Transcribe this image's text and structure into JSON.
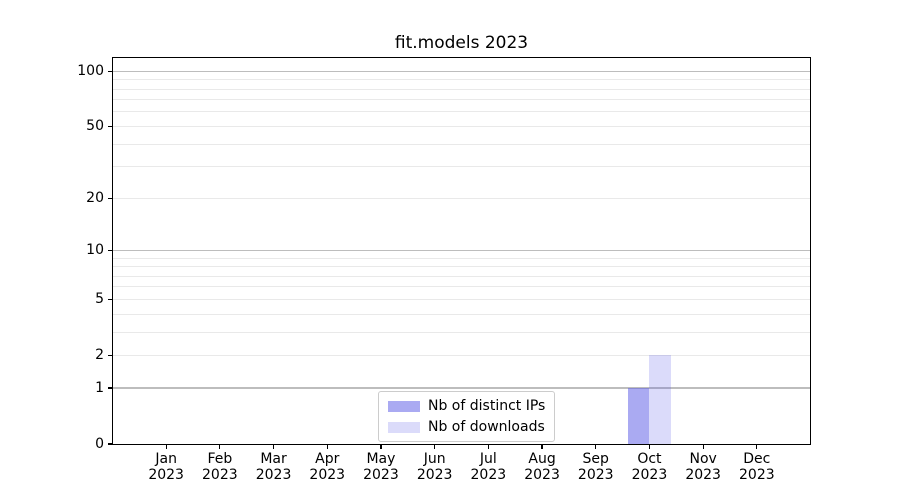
{
  "chart_data": {
    "type": "bar",
    "title": "fit.models 2023",
    "categories": [
      "Jan",
      "Feb",
      "Mar",
      "Apr",
      "May",
      "Jun",
      "Jul",
      "Aug",
      "Sep",
      "Oct",
      "Nov",
      "Dec"
    ],
    "category_year": "2023",
    "series": [
      {
        "name": "Nb of distinct IPs",
        "color": "#5555e6",
        "opacity": 0.5,
        "values": [
          0,
          0,
          0,
          0,
          0,
          0,
          0,
          0,
          0,
          1,
          0,
          0
        ]
      },
      {
        "name": "Nb of downloads",
        "color": "#5555e6",
        "opacity": 0.21,
        "values": [
          0,
          0,
          0,
          0,
          0,
          0,
          0,
          0,
          0,
          2,
          0,
          0
        ]
      }
    ],
    "y_axis": {
      "scale": "log1p",
      "ticks": [
        0,
        1,
        2,
        5,
        10,
        20,
        50,
        100
      ],
      "max": 118,
      "grid_major": [
        1,
        10,
        100
      ],
      "grid_minor": [
        2,
        3,
        4,
        5,
        6,
        7,
        8,
        9,
        20,
        30,
        40,
        50,
        60,
        70,
        80,
        90
      ]
    },
    "legend": {
      "position": "lower center"
    },
    "colors": {
      "grid_major": "#bdbdbd",
      "grid_minor": "#e9e9e9",
      "spine": "#000000",
      "background": "#ffffff"
    }
  }
}
